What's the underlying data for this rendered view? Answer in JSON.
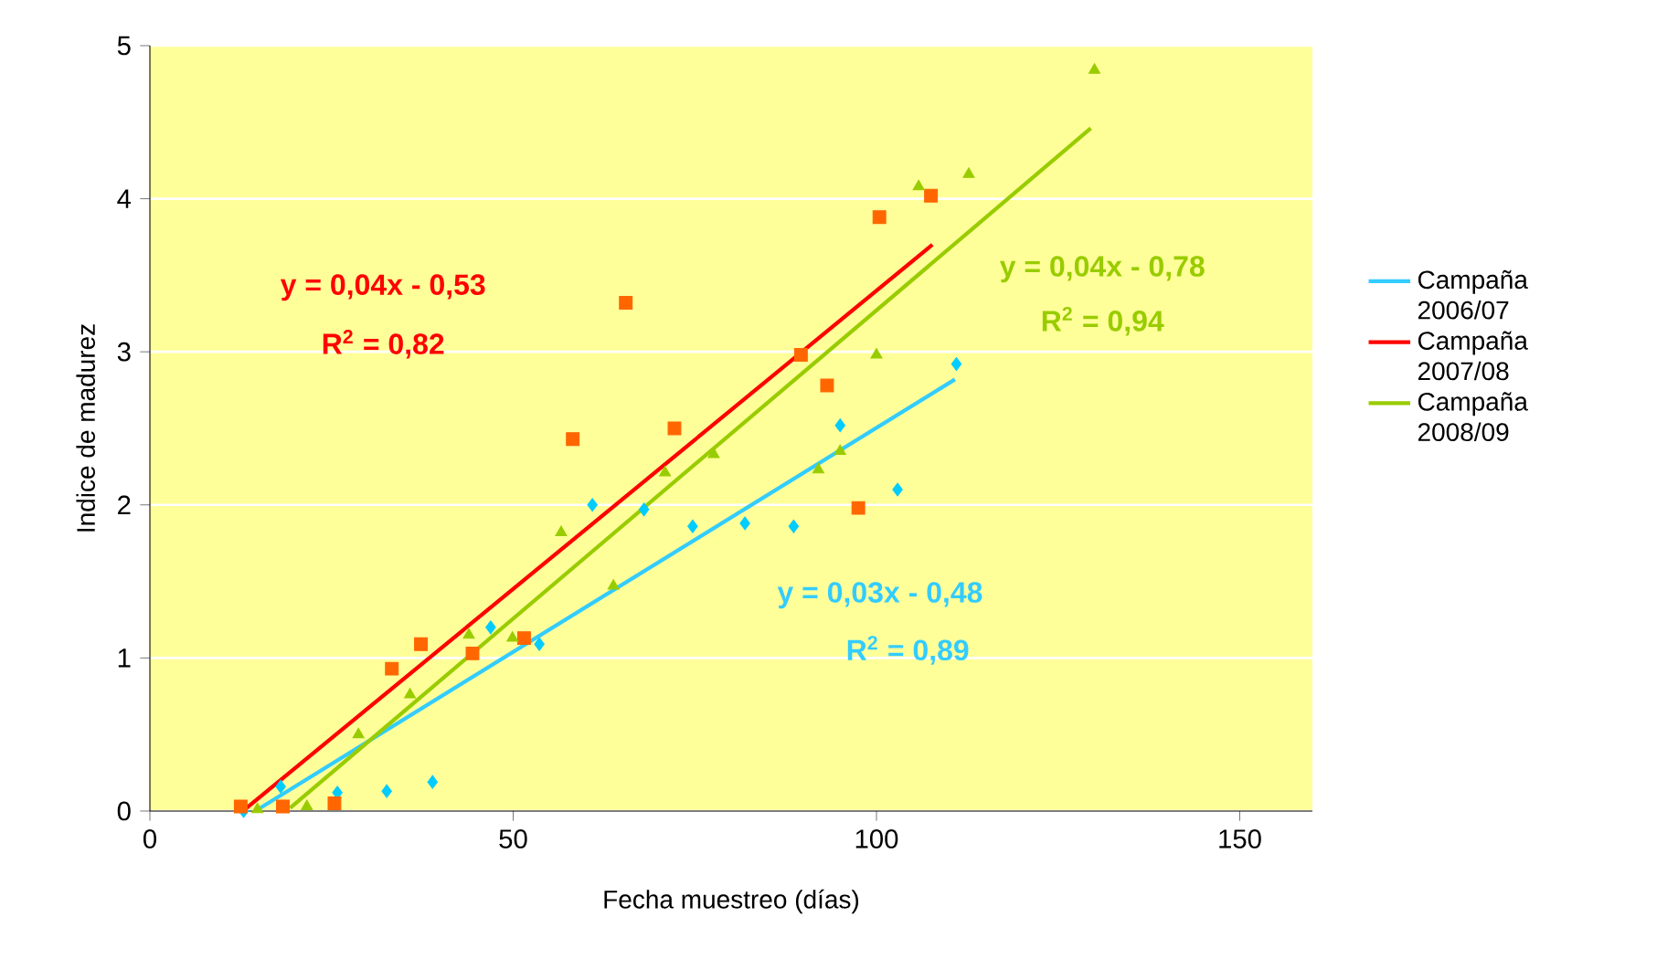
{
  "chart_data": {
    "type": "scatter",
    "xlabel": "Fecha muestreo (días)",
    "ylabel": "Indice de madurez",
    "xlim": [
      0,
      160
    ],
    "ylim": [
      0,
      5
    ],
    "xticks": [
      0,
      50,
      100,
      150
    ],
    "yticks": [
      0,
      1,
      2,
      3,
      4,
      5
    ],
    "grid": "y",
    "legend": "right",
    "series": [
      {
        "marker": "diamond",
        "color": "#00ccff",
        "x": [
          12.9,
          18.0,
          25.8,
          32.6,
          38.9,
          46.9,
          53.6,
          60.9,
          68.0,
          74.7,
          81.9,
          88.6,
          95.0,
          102.9,
          111.0
        ],
        "values": [
          0.0,
          0.16,
          0.12,
          0.13,
          0.19,
          1.2,
          1.09,
          2.0,
          1.97,
          1.86,
          1.88,
          1.86,
          2.52,
          2.1,
          2.92
        ]
      },
      {
        "marker": "square",
        "color": "#ff6600",
        "x": [
          12.5,
          18.3,
          25.4,
          33.3,
          37.3,
          44.4,
          51.5,
          58.2,
          65.5,
          72.2,
          89.6,
          93.2,
          97.5,
          100.4,
          107.5
        ],
        "values": [
          0.03,
          0.03,
          0.05,
          0.93,
          1.09,
          1.03,
          1.13,
          2.43,
          3.32,
          2.5,
          2.98,
          2.78,
          1.98,
          3.88,
          4.02
        ]
      },
      {
        "marker": "triangle",
        "color": "#99cc00",
        "x": [
          14.8,
          21.6,
          28.7,
          35.8,
          43.9,
          49.9,
          56.6,
          63.8,
          70.9,
          77.6,
          92.0,
          95.0,
          100.0,
          105.8,
          112.7,
          130.0
        ],
        "values": [
          0.01,
          0.03,
          0.5,
          0.76,
          1.15,
          1.13,
          1.82,
          1.47,
          2.21,
          2.33,
          2.23,
          2.35,
          2.98,
          4.08,
          4.16,
          4.84
        ]
      },
      {
        "type": "line",
        "name": "Campaña 2006/07",
        "color": "#33ccff",
        "x": [
          14.5,
          110.8
        ],
        "values": [
          0.0,
          2.82
        ]
      },
      {
        "type": "line",
        "name": "Campaña 2007/08",
        "color": "#ff0000",
        "x": [
          13.3,
          107.7
        ],
        "values": [
          0.02,
          3.7
        ]
      },
      {
        "type": "line",
        "name": "Campaña 2008/09",
        "color": "#99cc00",
        "x": [
          19.3,
          129.5
        ],
        "values": [
          0.02,
          4.46
        ]
      }
    ],
    "annotations": [
      "y = 0,03x - 0,48",
      "R$^{2}$ = 0,89",
      "y = 0,04x - 0,53",
      "R$^{2}$ = 0,82",
      "y = 0,04x - 0,78",
      "R$^{2}$ = 0,94"
    ]
  }
}
